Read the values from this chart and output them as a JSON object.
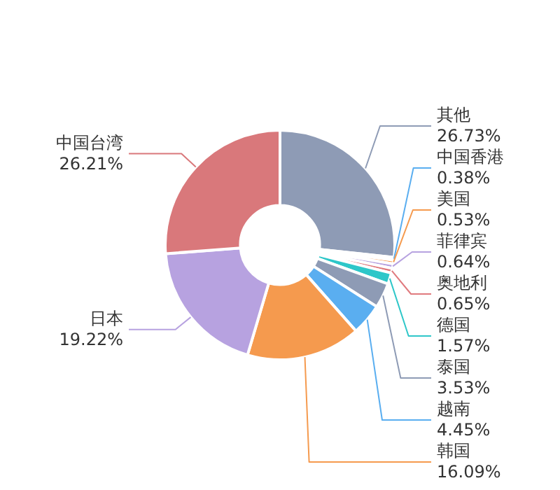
{
  "chart_data": {
    "type": "donut",
    "categories": [
      "其他",
      "中国香港",
      "美国",
      "菲律宾",
      "奥地利",
      "德国",
      "泰国",
      "越南",
      "韩国",
      "日本",
      "中国台湾"
    ],
    "values": [
      26.73,
      0.38,
      0.53,
      0.64,
      0.65,
      1.57,
      3.53,
      4.45,
      16.09,
      19.22,
      26.21
    ],
    "value_labels": [
      "26.73%",
      "0.38%",
      "0.53%",
      "0.64%",
      "0.65%",
      "1.57%",
      "3.53%",
      "4.45%",
      "16.09%",
      "19.22%",
      "26.21%"
    ],
    "colors": [
      "#8e9bb5",
      "#5aaef0",
      "#f59a4e",
      "#b7a2e0",
      "#e07a7e",
      "#2ec7c9",
      "#8e9bb5",
      "#5aaef0",
      "#f59a4e",
      "#b7a2e0",
      "#d9787b"
    ],
    "legend": false
  }
}
